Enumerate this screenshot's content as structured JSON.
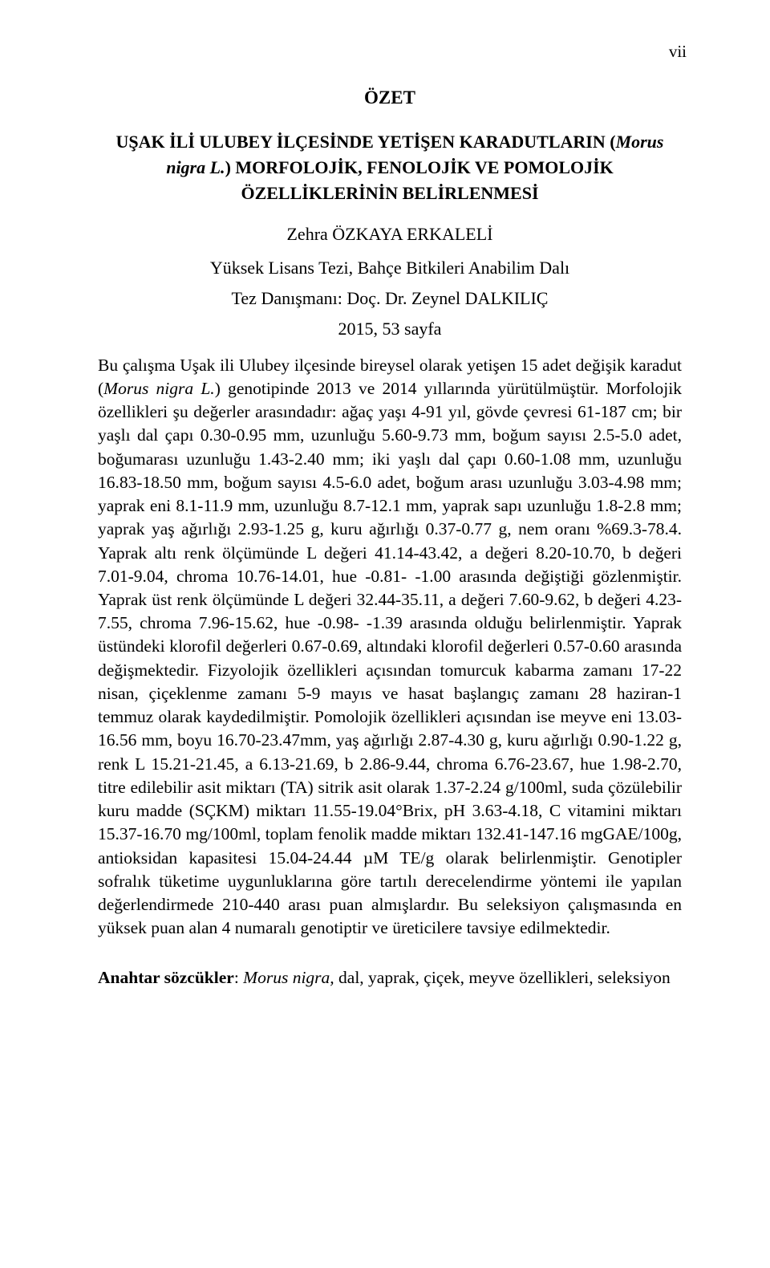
{
  "page_number": "vii",
  "heading": "ÖZET",
  "title_line1": "UŞAK İLİ ULUBEY İLÇESİNDE YETİŞEN KARADUTLARIN (",
  "title_species": "Morus nigra L.",
  "title_line2": ") MORFOLOJİK, FENOLOJİK VE POMOLOJİK ÖZELLİKLERİNİN BELİRLENMESİ",
  "author": "Zehra ÖZKAYA ERKALELİ",
  "thesis_info": "Yüksek Lisans Tezi, Bahçe Bitkileri Anabilim Dalı",
  "advisor": "Tez Danışmanı: Doç. Dr. Zeynel DALKILIÇ",
  "year_pages": "2015, 53 sayfa",
  "body_pre": "Bu çalışma Uşak ili Ulubey ilçesinde bireysel olarak yetişen 15 adet değişik karadut (",
  "body_species": "Morus nigra L.",
  "body_post": ") genotipinde 2013 ve 2014 yıllarında yürütülmüştür. Morfolojik özellikleri şu değerler arasındadır: ağaç yaşı 4-91 yıl, gövde çevresi 61-187 cm; bir yaşlı dal çapı 0.30-0.95 mm, uzunluğu 5.60-9.73 mm, boğum sayısı 2.5-5.0 adet, boğumarası uzunluğu 1.43-2.40 mm; iki yaşlı dal çapı 0.60-1.08 mm, uzunluğu 16.83-18.50 mm, boğum sayısı 4.5-6.0 adet, boğum arası uzunluğu 3.03-4.98 mm; yaprak eni 8.1-11.9 mm, uzunluğu 8.7-12.1 mm, yaprak sapı uzunluğu 1.8-2.8 mm; yaprak yaş ağırlığı 2.93-1.25 g, kuru ağırlığı 0.37-0.77 g, nem oranı %69.3-78.4. Yaprak altı renk ölçümünde L değeri 41.14-43.42, a değeri 8.20-10.70, b değeri 7.01-9.04, chroma 10.76-14.01, hue -0.81- -1.00 arasında değiştiği gözlenmiştir. Yaprak üst renk ölçümünde L değeri 32.44-35.11, a değeri 7.60-9.62, b değeri 4.23-7.55, chroma 7.96-15.62, hue -0.98- -1.39 arasında olduğu belirlenmiştir. Yaprak üstündeki klorofil değerleri 0.67-0.69, altındaki klorofil değerleri 0.57-0.60 arasında değişmektedir. Fizyolojik özellikleri açısından tomurcuk kabarma zamanı 17-22 nisan, çiçeklenme zamanı 5-9 mayıs ve hasat başlangıç zamanı 28 haziran-1 temmuz olarak kaydedilmiştir. Pomolojik özellikleri açısından ise meyve eni 13.03-16.56 mm, boyu 16.70-23.47mm, yaş ağırlığı 2.87-4.30 g, kuru ağırlığı 0.90-1.22 g, renk L 15.21-21.45, a 6.13-21.69, b 2.86-9.44, chroma 6.76-23.67, hue 1.98-2.70, titre edilebilir asit miktarı (TA) sitrik asit olarak 1.37-2.24 g/100ml, suda çözülebilir kuru madde (SÇKM) miktarı 11.55-19.04°Brix, pH 3.63-4.18, C vitamini miktarı 15.37-16.70 mg/100ml, toplam fenolik madde miktarı 132.41-147.16 mgGAE/100g, antioksidan kapasitesi 15.04-24.44 µM TE/g olarak belirlenmiştir. Genotipler sofralık tüketime uygunluklarına göre tartılı derecelendirme yöntemi ile yapılan değerlendirmede 210-440 arası puan almışlardır. Bu seleksiyon çalışmasında en yüksek puan alan 4 numaralı genotiptir ve üreticilere tavsiye edilmektedir.",
  "keywords_label": "Anahtar sözcükler",
  "keywords_colon": ": ",
  "keywords_italic": "Morus nigra,",
  "keywords_rest": " dal, yaprak, çiçek, meyve özellikleri, seleksiyon"
}
